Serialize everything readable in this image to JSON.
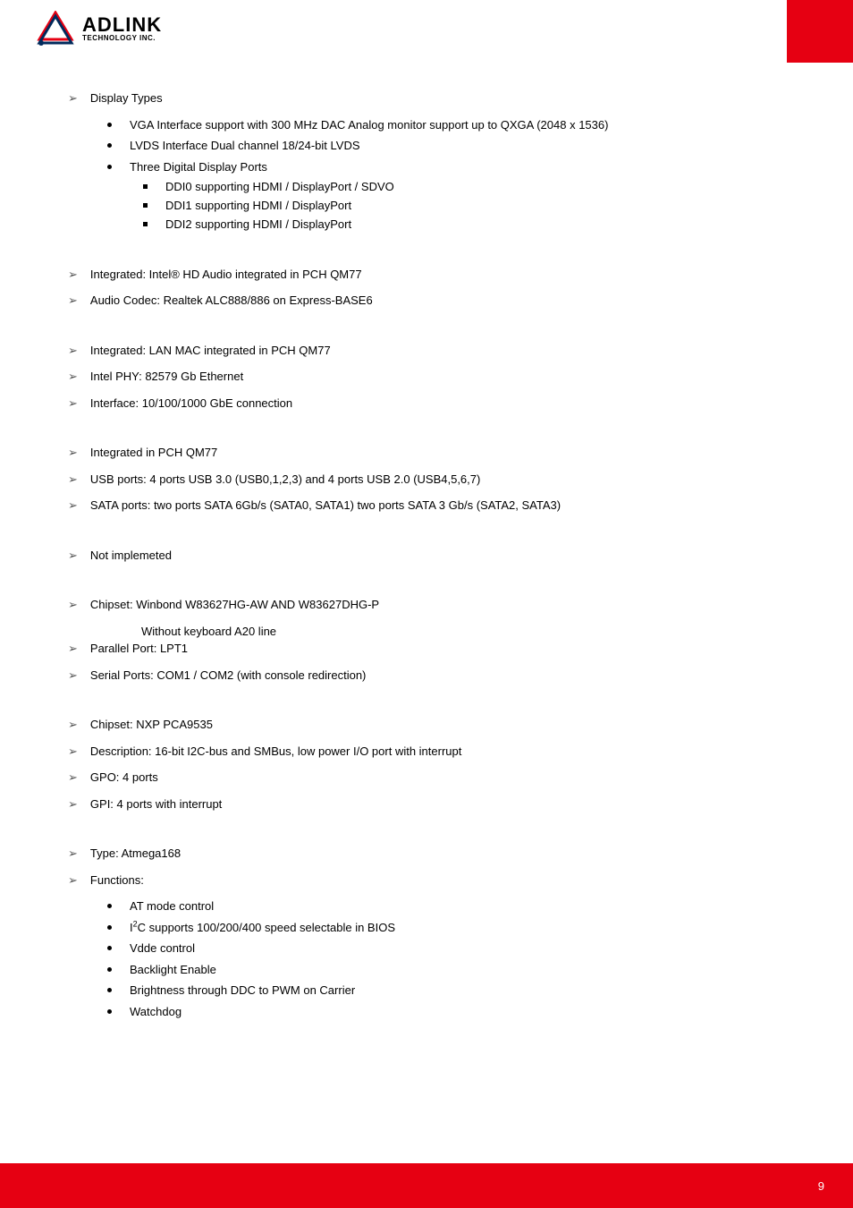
{
  "logo": {
    "name": "ADLINK",
    "sub": "TECHNOLOGY INC."
  },
  "colors": {
    "brand_red": "#e60012",
    "text": "#000000",
    "arrow": "#555555"
  },
  "page_number": "9",
  "sections": [
    {
      "items": [
        {
          "text": "Display Types",
          "sub": [
            {
              "text": "VGA Interface support with 300 MHz DAC Analog monitor support up to QXGA (2048 x 1536)"
            },
            {
              "text": "LVDS Interface Dual channel 18/24-bit LVDS"
            },
            {
              "text": "Three Digital Display Ports",
              "sub": [
                {
                  "text": "DDI0 supporting HDMI / DisplayPort / SDVO"
                },
                {
                  "text": "DDI1 supporting HDMI / DisplayPort"
                },
                {
                  "text": "DDI2 supporting HDMI / DisplayPort"
                }
              ]
            }
          ]
        }
      ]
    },
    {
      "items": [
        {
          "text": "Integrated: Intel® HD Audio integrated in PCH QM77"
        },
        {
          "text": "Audio Codec: Realtek ALC888/886 on Express-BASE6"
        }
      ]
    },
    {
      "items": [
        {
          "text": "Integrated: LAN MAC integrated in PCH QM77"
        },
        {
          "text": "Intel PHY: 82579 Gb Ethernet"
        },
        {
          "text": "Interface: 10/100/1000 GbE connection"
        }
      ]
    },
    {
      "items": [
        {
          "text": "Integrated in PCH QM77"
        },
        {
          "text": "USB ports: 4 ports USB 3.0 (USB0,1,2,3) and 4 ports USB 2.0 (USB4,5,6,7)"
        },
        {
          "text": "SATA ports: two ports SATA 6Gb/s (SATA0, SATA1)  two ports SATA 3 Gb/s (SATA2, SATA3)"
        }
      ]
    },
    {
      "items": [
        {
          "text": "Not implemeted"
        }
      ]
    },
    {
      "items": [
        {
          "text": "Chipset: Winbond W83627HG-AW AND W83627DHG-P",
          "cont": "Without keyboard A20 line"
        },
        {
          "text": "Parallel Port: LPT1"
        },
        {
          "text": "Serial Ports: COM1 / COM2   (with console redirection)"
        }
      ]
    },
    {
      "items": [
        {
          "text": "Chipset: NXP PCA9535"
        },
        {
          "text": "Description: 16-bit I2C-bus and SMBus, low power I/O port with interrupt"
        },
        {
          "text": "GPO: 4 ports"
        },
        {
          "text": "GPI: 4 ports with interrupt"
        }
      ]
    },
    {
      "items": [
        {
          "text": "Type: Atmega168"
        },
        {
          "text": "Functions:",
          "sub": [
            {
              "text": "AT mode control"
            },
            {
              "html": "I<sup>2</sup>C supports 100/200/400 speed selectable in BIOS"
            },
            {
              "text": "Vdde control"
            },
            {
              "text": "Backlight Enable"
            },
            {
              "text": "Brightness through DDC to PWM on Carrier"
            },
            {
              "text": "Watchdog"
            }
          ]
        }
      ]
    }
  ]
}
